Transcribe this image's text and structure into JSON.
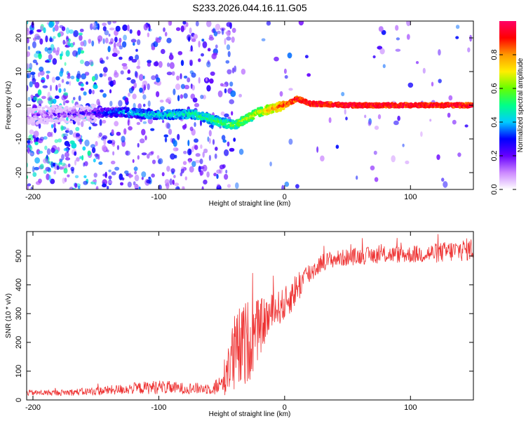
{
  "title": "S233.2026.044.16.11.G05",
  "colors": {
    "snr_line": "#ee3333",
    "background": "#ffffff",
    "axis": "#000000"
  },
  "chart_data": [
    {
      "type": "heatmap",
      "name": "spectrogram",
      "xlabel": "Height of straight line (km)",
      "ylabel": "Frequency (Hz)",
      "xlim": [
        -205,
        150
      ],
      "ylim": [
        -25,
        25
      ],
      "xticks": [
        -200,
        -100,
        0,
        100
      ],
      "xtick_labels": [
        "-200",
        "-100",
        "0",
        "100"
      ],
      "yticks": [
        -20,
        -10,
        0,
        10,
        20
      ],
      "ytick_labels": [
        "-20",
        "-10",
        "0",
        "10",
        "20"
      ],
      "colorbar": {
        "label": "Normalized spectral amplitude",
        "range": [
          0,
          1
        ],
        "ticks": [
          0.0,
          0.2,
          0.4,
          0.6,
          0.8
        ],
        "tick_labels": [
          "0.0",
          "0.2",
          "0.4",
          "0.6",
          "0.8"
        ],
        "colormap": [
          "#ffffff",
          "#cc88ff",
          "#6600ff",
          "#0000ff",
          "#00ccff",
          "#00ff88",
          "#66ff00",
          "#ffee00",
          "#ff9900",
          "#ff0000",
          "#ff0066"
        ]
      },
      "ridge": {
        "x": [
          -205,
          -160,
          -130,
          -100,
          -75,
          -50,
          -40,
          -30,
          -20,
          -10,
          0,
          10,
          20,
          50,
          80,
          110,
          150
        ],
        "freq": [
          -3,
          -2.5,
          -2,
          -3,
          -2.5,
          -5,
          -6,
          -4,
          -2,
          -1,
          0,
          2,
          0.5,
          0,
          0,
          0,
          0
        ],
        "amplitude": [
          0.15,
          0.2,
          0.4,
          0.45,
          0.5,
          0.55,
          0.6,
          0.65,
          0.7,
          0.8,
          0.88,
          0.92,
          0.95,
          0.95,
          0.95,
          0.95,
          0.95
        ]
      }
    },
    {
      "type": "line",
      "name": "snr",
      "xlabel": "Height of straight line (km)",
      "ylabel": "SNR (10 * v/v)",
      "xlim": [
        -205,
        150
      ],
      "ylim": [
        0,
        585
      ],
      "xticks": [
        -200,
        -100,
        0,
        100
      ],
      "xtick_labels": [
        "-200",
        "-100",
        "0",
        "100"
      ],
      "yticks": [
        0,
        100,
        200,
        300,
        400,
        500
      ],
      "ytick_labels": [
        "0",
        "100",
        "200",
        "300",
        "400",
        "500"
      ],
      "series": [
        {
          "name": "SNR",
          "x": [
            -205,
            -180,
            -150,
            -120,
            -100,
            -80,
            -60,
            -50,
            -45,
            -40,
            -35,
            -30,
            -25,
            -20,
            -15,
            -10,
            -5,
            0,
            5,
            10,
            15,
            20,
            25,
            30,
            40,
            50,
            60,
            80,
            100,
            120,
            140,
            150
          ],
          "mean": [
            25,
            25,
            30,
            40,
            45,
            40,
            40,
            50,
            120,
            150,
            180,
            200,
            220,
            250,
            280,
            300,
            320,
            330,
            360,
            390,
            420,
            440,
            460,
            480,
            490,
            495,
            500,
            505,
            505,
            510,
            520,
            525
          ],
          "noise": [
            10,
            10,
            15,
            20,
            25,
            20,
            20,
            40,
            100,
            150,
            150,
            150,
            130,
            100,
            80,
            70,
            60,
            60,
            60,
            60,
            50,
            40,
            35,
            30,
            30,
            30,
            30,
            30,
            30,
            35,
            40,
            40
          ]
        }
      ]
    }
  ]
}
